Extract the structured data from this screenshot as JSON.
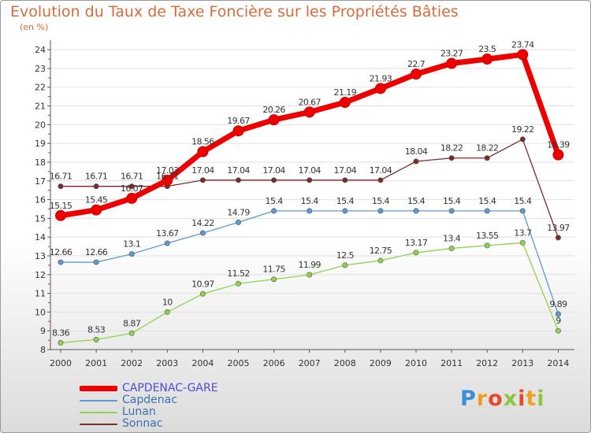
{
  "title": "Evolution du Taux de Taxe Foncière sur les Propriétés Bâties",
  "subtitle": "(en %)",
  "logo": "Proxiti",
  "colors": {
    "title": "#d96b3a",
    "axis": "#555555",
    "grid": "#e0e0e0"
  },
  "chart_data": {
    "type": "line",
    "title": "Evolution du Taux de Taxe Foncière sur les Propriétés Bâties",
    "ylabel": "(en %)",
    "x": [
      "2000",
      "2001",
      "2002",
      "2003",
      "2004",
      "2005",
      "2006",
      "2007",
      "2008",
      "2009",
      "2010",
      "2011",
      "2012",
      "2013",
      "2014"
    ],
    "yticks": [
      8,
      9,
      10,
      11,
      12,
      13,
      14,
      15,
      16,
      17,
      18,
      19,
      20,
      21,
      22,
      23,
      24
    ],
    "ylim": [
      8,
      24.3
    ],
    "grid": "horizontal",
    "legend_position": "bottom-left",
    "series": [
      {
        "name": "CAPDENAC-GARE",
        "color": "#ee0000",
        "values": [
          15.15,
          15.45,
          16.07,
          17.03,
          18.56,
          19.67,
          20.26,
          20.67,
          21.19,
          21.93,
          22.7,
          23.27,
          23.5,
          23.74,
          18.39
        ],
        "labels": [
          "15.15",
          "15.45",
          "16.07",
          "17.03",
          "18.56",
          "19.67",
          "20.26",
          "20.67",
          "21.19",
          "21.93",
          "22.7",
          "23.27",
          "23.5",
          "23.74",
          "18.39"
        ]
      },
      {
        "name": "Capdenac",
        "color": "#5b9bd5",
        "values": [
          12.66,
          12.66,
          13.1,
          13.67,
          14.22,
          14.79,
          15.4,
          15.4,
          15.4,
          15.4,
          15.4,
          15.4,
          15.4,
          15.4,
          9.89
        ],
        "labels": [
          "12.66",
          "12.66",
          "13.1",
          "13.67",
          "14.22",
          "14.79",
          "15.4",
          "15.4",
          "15.4",
          "15.4",
          "15.4",
          "15.4",
          "15.4",
          "15.4",
          "9.89"
        ]
      },
      {
        "name": "Lunan",
        "color": "#8fd14f",
        "values": [
          8.36,
          8.53,
          8.87,
          10,
          10.97,
          11.52,
          11.75,
          11.99,
          12.5,
          12.75,
          13.17,
          13.4,
          13.55,
          13.7,
          9
        ],
        "labels": [
          "8.36",
          "8.53",
          "8.87",
          "10",
          "10.97",
          "11.52",
          "11.75",
          "11.99",
          "12.5",
          "12.75",
          "13.17",
          "13.4",
          "13.55",
          "13.7",
          "9"
        ]
      },
      {
        "name": "Sonnac",
        "color": "#7b2a2a",
        "values": [
          16.71,
          16.71,
          16.71,
          16.71,
          17.04,
          17.04,
          17.04,
          17.04,
          17.04,
          17.04,
          18.04,
          18.22,
          18.22,
          19.22,
          13.97
        ],
        "labels": [
          "16.71",
          "16.71",
          "16.71",
          "16.71",
          "17.04",
          "17.04",
          "17.04",
          "17.04",
          "17.04",
          "17.04",
          "18.04",
          "18.22",
          "18.22",
          "19.22",
          "13.97"
        ]
      }
    ]
  }
}
